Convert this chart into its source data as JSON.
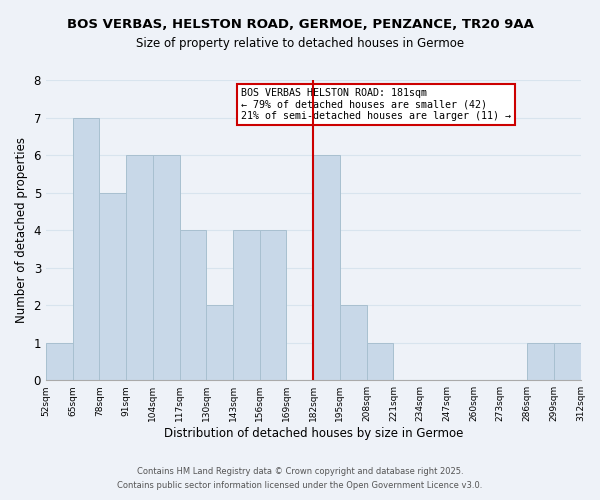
{
  "title": "BOS VERBAS, HELSTON ROAD, GERMOE, PENZANCE, TR20 9AA",
  "subtitle": "Size of property relative to detached houses in Germoe",
  "xlabel": "Distribution of detached houses by size in Germoe",
  "ylabel": "Number of detached properties",
  "bin_edges": [
    52,
    65,
    78,
    91,
    104,
    117,
    130,
    143,
    156,
    169,
    182,
    195,
    208,
    221,
    234,
    247,
    260,
    273,
    286,
    299,
    312
  ],
  "counts": [
    1,
    7,
    5,
    6,
    6,
    4,
    2,
    4,
    4,
    0,
    6,
    2,
    1,
    0,
    0,
    0,
    0,
    0,
    1,
    1
  ],
  "bar_color": "#c8d8e8",
  "bar_edgecolor": "#a8c0d0",
  "vline_x": 182,
  "vline_color": "#cc0000",
  "annotation_title": "BOS VERBAS HELSTON ROAD: 181sqm",
  "annotation_line1": "← 79% of detached houses are smaller (42)",
  "annotation_line2": "21% of semi-detached houses are larger (11) →",
  "annotation_box_color": "#ffffff",
  "annotation_box_edgecolor": "#cc0000",
  "ylim": [
    0,
    8
  ],
  "yticks": [
    0,
    1,
    2,
    3,
    4,
    5,
    6,
    7,
    8
  ],
  "tick_labels": [
    "52sqm",
    "65sqm",
    "78sqm",
    "91sqm",
    "104sqm",
    "117sqm",
    "130sqm",
    "143sqm",
    "156sqm",
    "169sqm",
    "182sqm",
    "195sqm",
    "208sqm",
    "221sqm",
    "234sqm",
    "247sqm",
    "260sqm",
    "273sqm",
    "286sqm",
    "299sqm",
    "312sqm"
  ],
  "grid_color": "#d8e4ee",
  "background_color": "#eef2f8",
  "footer1": "Contains HM Land Registry data © Crown copyright and database right 2025.",
  "footer2": "Contains public sector information licensed under the Open Government Licence v3.0."
}
